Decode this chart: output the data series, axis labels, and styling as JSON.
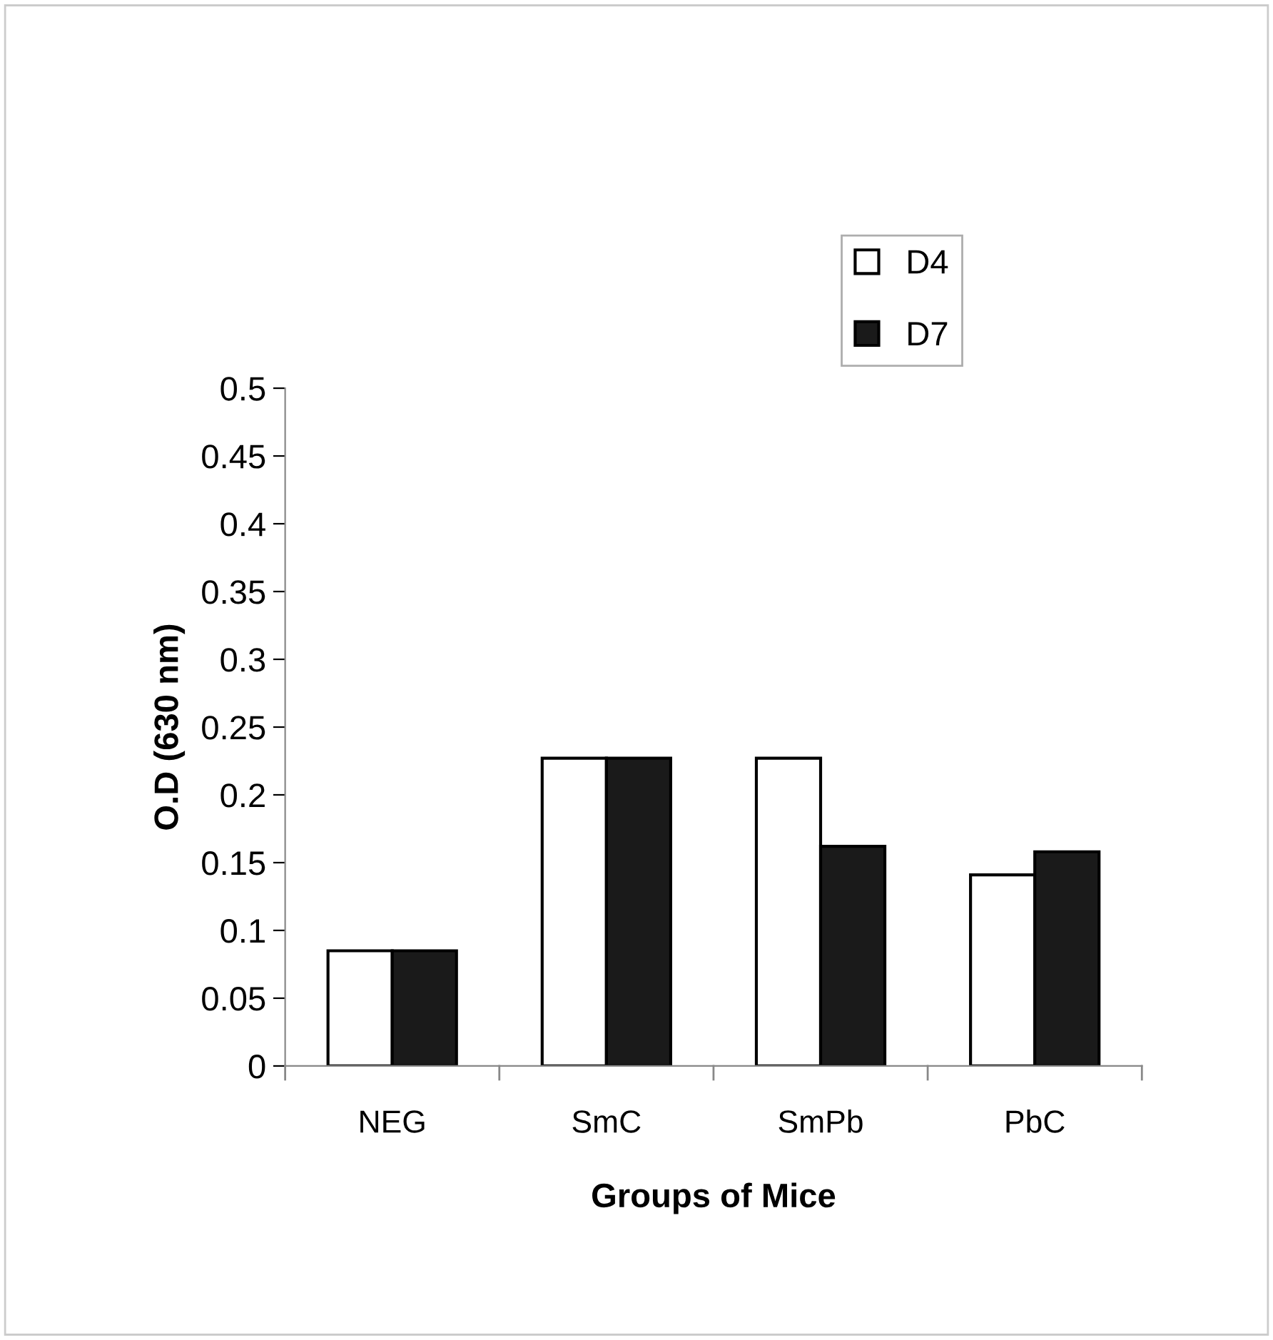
{
  "chart_data": {
    "type": "bar",
    "xlabel": "Groups of Mice",
    "ylabel": "O.D (630 nm)",
    "categories": [
      "NEG",
      "SmC",
      "SmPb",
      "PbC"
    ],
    "series": [
      {
        "name": "D4",
        "color": "#ffffff",
        "values": [
          0.085,
          0.227,
          0.227,
          0.141
        ]
      },
      {
        "name": "D7",
        "color": "#1a1a1a",
        "values": [
          0.085,
          0.227,
          0.162,
          0.158
        ]
      }
    ],
    "ylim": [
      0,
      0.5
    ],
    "yticks": [
      0,
      0.05,
      0.1,
      0.15,
      0.2,
      0.25,
      0.3,
      0.35,
      0.4,
      0.45,
      0.5
    ],
    "grid": false,
    "legend": "top right"
  }
}
